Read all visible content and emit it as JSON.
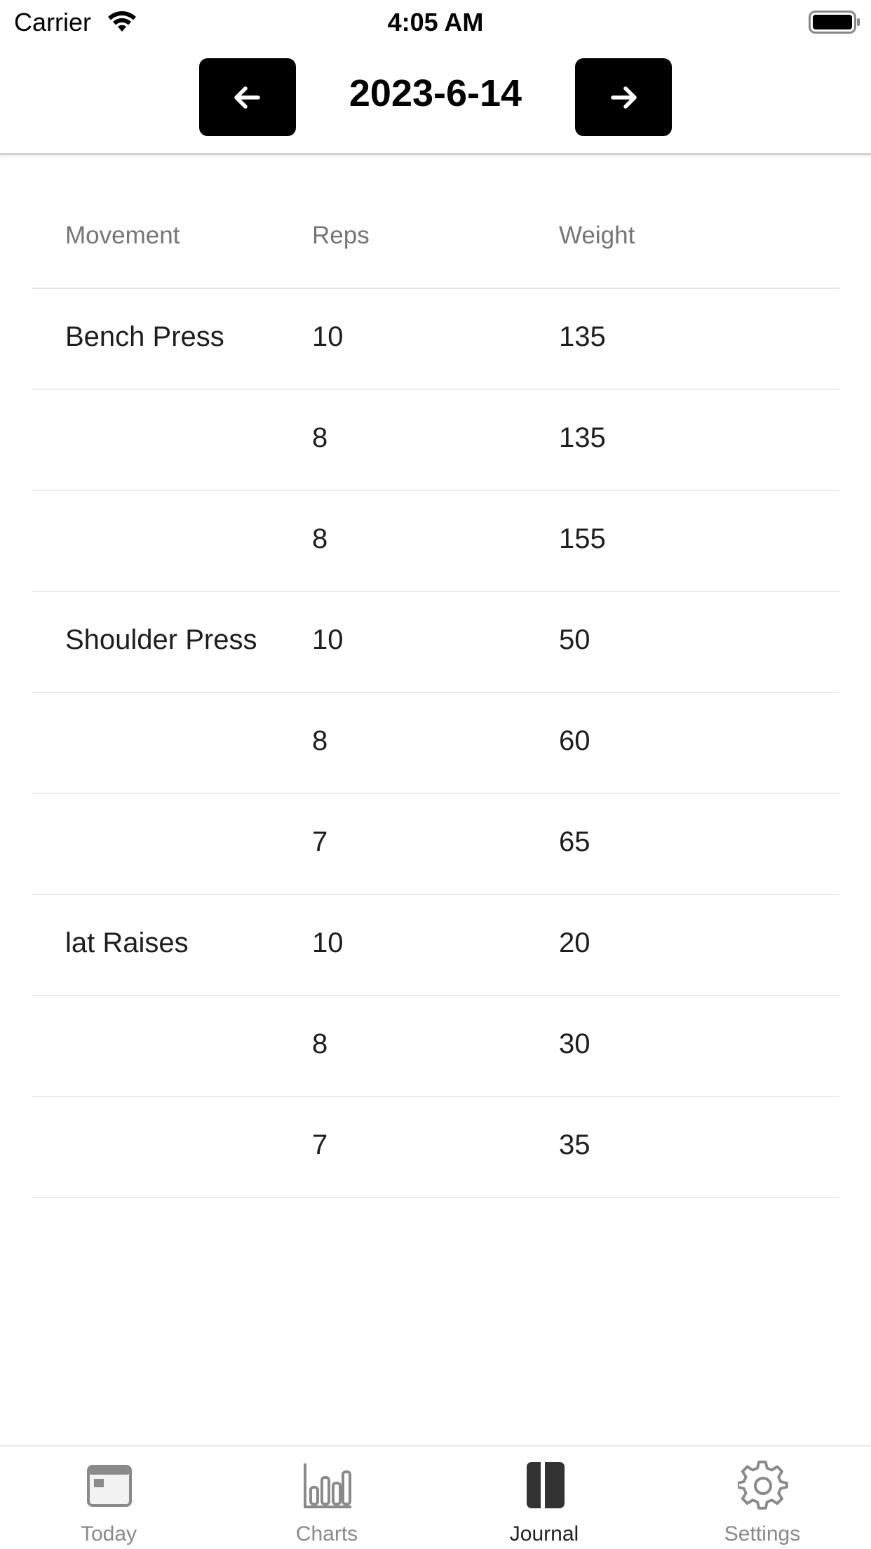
{
  "status_bar": {
    "carrier": "Carrier",
    "time": "4:05 AM"
  },
  "header": {
    "date": "2023-6-14",
    "prev_icon": "arrow-left-icon",
    "next_icon": "arrow-right-icon"
  },
  "table": {
    "columns": [
      "Movement",
      "Reps",
      "Weight"
    ],
    "rows": [
      {
        "movement": "Bench Press",
        "reps": "10",
        "weight": "135"
      },
      {
        "movement": "",
        "reps": "8",
        "weight": "135"
      },
      {
        "movement": "",
        "reps": "8",
        "weight": "155"
      },
      {
        "movement": "Shoulder Press",
        "reps": "10",
        "weight": "50"
      },
      {
        "movement": "",
        "reps": "8",
        "weight": "60"
      },
      {
        "movement": "",
        "reps": "7",
        "weight": "65"
      },
      {
        "movement": "lat Raises",
        "reps": "10",
        "weight": "20"
      },
      {
        "movement": "",
        "reps": "8",
        "weight": "30"
      },
      {
        "movement": "",
        "reps": "7",
        "weight": "35"
      }
    ]
  },
  "tabs": [
    {
      "label": "Today",
      "icon": "calendar-icon"
    },
    {
      "label": "Charts",
      "icon": "bar-chart-icon"
    },
    {
      "label": "Journal",
      "icon": "book-icon",
      "active": true
    },
    {
      "label": "Settings",
      "icon": "gear-icon"
    }
  ],
  "colors": {
    "accent": "#000000",
    "tab_inactive": "#8a8a8a",
    "tab_active": "#222222"
  }
}
